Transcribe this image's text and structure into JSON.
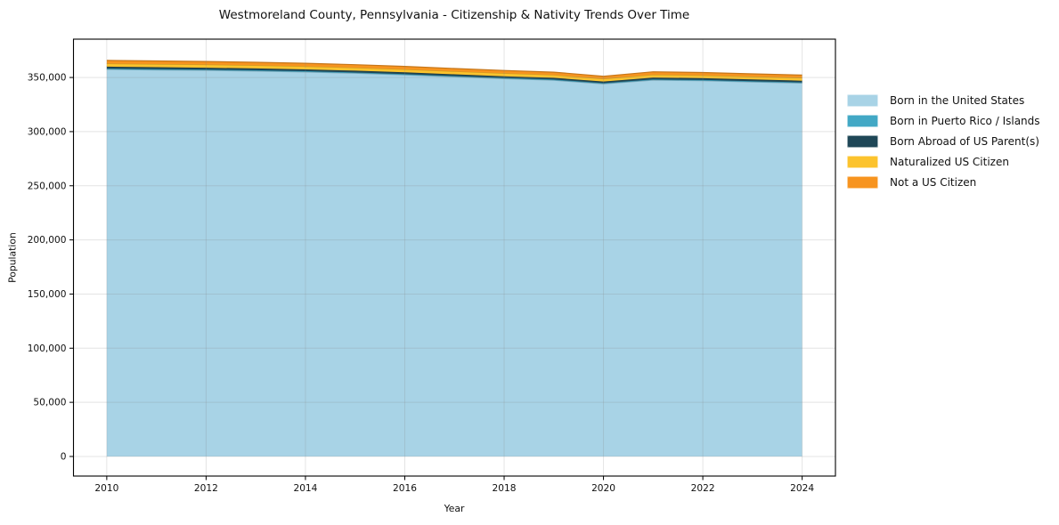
{
  "chart_data": {
    "type": "area",
    "stacked": true,
    "title": "Westmoreland County, Pennsylvania - Citizenship & Nativity Trends Over Time",
    "xlabel": "Year",
    "ylabel": "Population",
    "x": [
      2010,
      2011,
      2012,
      2013,
      2014,
      2015,
      2016,
      2017,
      2018,
      2019,
      2020,
      2021,
      2022,
      2023,
      2024
    ],
    "series": [
      {
        "name": "Born in the United States",
        "color": "#a8d3e6",
        "values": [
          357500,
          357000,
          356600,
          355900,
          355100,
          353900,
          352400,
          350600,
          348900,
          347400,
          344100,
          347600,
          347000,
          345900,
          344800
        ]
      },
      {
        "name": "Born in Puerto Rico / Islands",
        "color": "#42a8c5",
        "values": [
          800,
          800,
          800,
          800,
          800,
          800,
          800,
          750,
          750,
          750,
          700,
          750,
          750,
          750,
          750
        ]
      },
      {
        "name": "Born Abroad of US Parent(s)",
        "color": "#1f4757",
        "values": [
          1700,
          1700,
          1650,
          1650,
          1600,
          1600,
          1550,
          1550,
          1500,
          1500,
          1450,
          1550,
          1550,
          1500,
          1500
        ]
      },
      {
        "name": "Naturalized US Citizen",
        "color": "#fcc32d",
        "values": [
          2900,
          2900,
          2900,
          2850,
          2850,
          2800,
          2800,
          2750,
          2750,
          2700,
          2600,
          2750,
          2750,
          2700,
          2700
        ]
      },
      {
        "name": "Not a US Citizen",
        "color": "#f7941f",
        "values": [
          2900,
          2850,
          2800,
          2800,
          2750,
          2700,
          2700,
          2650,
          2600,
          2550,
          2300,
          2600,
          2550,
          2500,
          2450
        ]
      }
    ],
    "xlim": [
      2009.33,
      2024.67
    ],
    "ylim": [
      -18100,
      385400
    ],
    "xticks": [
      2010,
      2012,
      2014,
      2016,
      2018,
      2020,
      2022,
      2024
    ],
    "yticks": [
      0,
      50000,
      100000,
      150000,
      200000,
      250000,
      300000,
      350000
    ],
    "ytick_labels": [
      "0",
      "50,000",
      "100,000",
      "150,000",
      "200,000",
      "250,000",
      "300,000",
      "350,000"
    ],
    "grid": true,
    "legend_position": "right-outside",
    "style": {
      "background": "#ffffff",
      "spine_color": "#000000",
      "grid_color_rgba": "rgba(130,130,130,0.22)",
      "text_color": "#111111"
    }
  }
}
